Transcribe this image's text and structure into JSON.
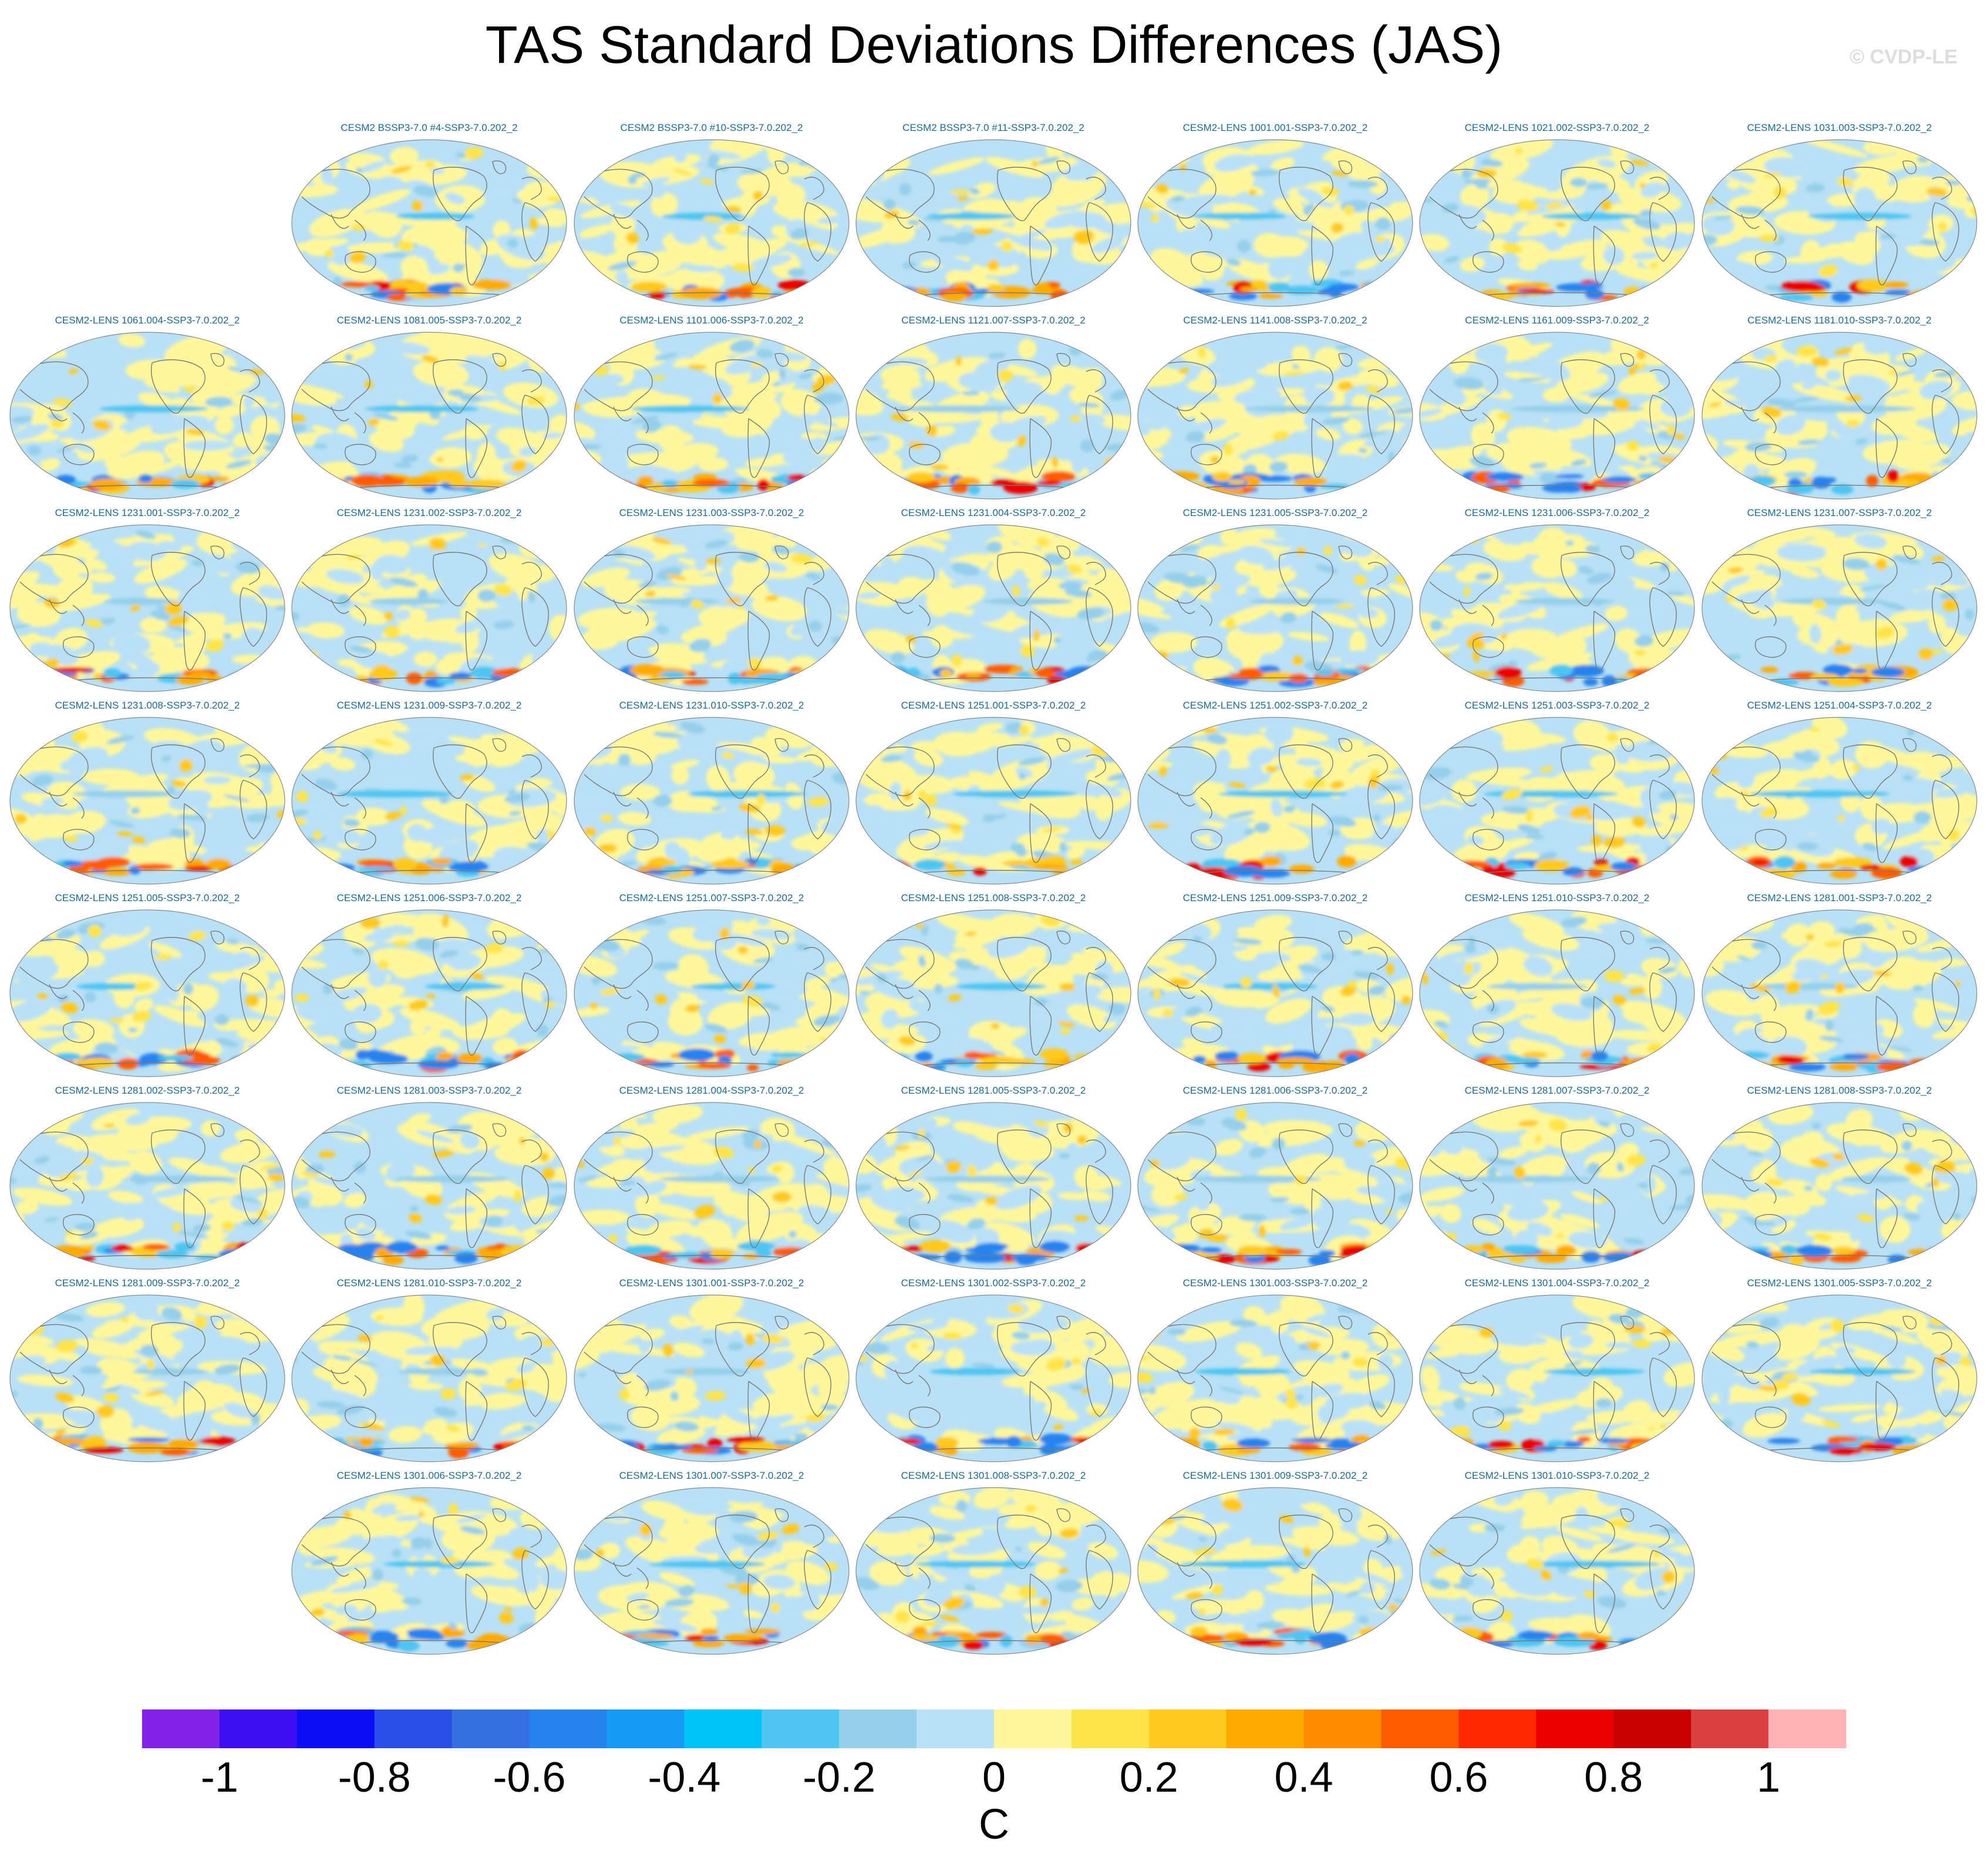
{
  "title": "TAS Standard Deviations Differences (JAS)",
  "watermark": "© CVDP-LE",
  "chart_data": {
    "type": "heatmap",
    "title": "TAS Standard Deviations Differences (JAS)",
    "description_unit": "C",
    "panels": [
      [
        "",
        "CESM2 BSSP3-7.0 #4-SSP3-7.0.202_2",
        "CESM2 BSSP3-7.0 #10-SSP3-7.0.202_2",
        "CESM2 BSSP3-7.0 #11-SSP3-7.0.202_2",
        "CESM2-LENS 1001.001-SSP3-7.0.202_2",
        "CESM2-LENS 1021.002-SSP3-7.0.202_2",
        "CESM2-LENS 1031.003-SSP3-7.0.202_2"
      ],
      [
        "CESM2-LENS 1061.004-SSP3-7.0.202_2",
        "CESM2-LENS 1081.005-SSP3-7.0.202_2",
        "CESM2-LENS 1101.006-SSP3-7.0.202_2",
        "CESM2-LENS 1121.007-SSP3-7.0.202_2",
        "CESM2-LENS 1141.008-SSP3-7.0.202_2",
        "CESM2-LENS 1161.009-SSP3-7.0.202_2",
        "CESM2-LENS 1181.010-SSP3-7.0.202_2"
      ],
      [
        "CESM2-LENS 1231.001-SSP3-7.0.202_2",
        "CESM2-LENS 1231.002-SSP3-7.0.202_2",
        "CESM2-LENS 1231.003-SSP3-7.0.202_2",
        "CESM2-LENS 1231.004-SSP3-7.0.202_2",
        "CESM2-LENS 1231.005-SSP3-7.0.202_2",
        "CESM2-LENS 1231.006-SSP3-7.0.202_2",
        "CESM2-LENS 1231.007-SSP3-7.0.202_2"
      ],
      [
        "CESM2-LENS 1231.008-SSP3-7.0.202_2",
        "CESM2-LENS 1231.009-SSP3-7.0.202_2",
        "CESM2-LENS 1231.010-SSP3-7.0.202_2",
        "CESM2-LENS 1251.001-SSP3-7.0.202_2",
        "CESM2-LENS 1251.002-SSP3-7.0.202_2",
        "CESM2-LENS 1251.003-SSP3-7.0.202_2",
        "CESM2-LENS 1251.004-SSP3-7.0.202_2"
      ],
      [
        "CESM2-LENS 1251.005-SSP3-7.0.202_2",
        "CESM2-LENS 1251.006-SSP3-7.0.202_2",
        "CESM2-LENS 1251.007-SSP3-7.0.202_2",
        "CESM2-LENS 1251.008-SSP3-7.0.202_2",
        "CESM2-LENS 1251.009-SSP3-7.0.202_2",
        "CESM2-LENS 1251.010-SSP3-7.0.202_2",
        "CESM2-LENS 1281.001-SSP3-7.0.202_2"
      ],
      [
        "CESM2-LENS 1281.002-SSP3-7.0.202_2",
        "CESM2-LENS 1281.003-SSP3-7.0.202_2",
        "CESM2-LENS 1281.004-SSP3-7.0.202_2",
        "CESM2-LENS 1281.005-SSP3-7.0.202_2",
        "CESM2-LENS 1281.006-SSP3-7.0.202_2",
        "CESM2-LENS 1281.007-SSP3-7.0.202_2",
        "CESM2-LENS 1281.008-SSP3-7.0.202_2"
      ],
      [
        "CESM2-LENS 1281.009-SSP3-7.0.202_2",
        "CESM2-LENS 1281.010-SSP3-7.0.202_2",
        "CESM2-LENS 1301.001-SSP3-7.0.202_2",
        "CESM2-LENS 1301.002-SSP3-7.0.202_2",
        "CESM2-LENS 1301.003-SSP3-7.0.202_2",
        "CESM2-LENS 1301.004-SSP3-7.0.202_2",
        "CESM2-LENS 1301.005-SSP3-7.0.202_2"
      ],
      [
        "",
        "CESM2-LENS 1301.006-SSP3-7.0.202_2",
        "CESM2-LENS 1301.007-SSP3-7.0.202_2",
        "CESM2-LENS 1301.008-SSP3-7.0.202_2",
        "CESM2-LENS 1301.009-SSP3-7.0.202_2",
        "CESM2-LENS 1301.010-SSP3-7.0.202_2",
        ""
      ]
    ],
    "colorbar": {
      "label": "C",
      "levels": [
        -1.1,
        -1.0,
        -0.9,
        -0.8,
        -0.7,
        -0.6,
        -0.5,
        -0.4,
        -0.3,
        -0.2,
        -0.1,
        0.0,
        0.1,
        0.2,
        0.3,
        0.4,
        0.5,
        0.6,
        0.7,
        0.8,
        0.9,
        1.0,
        1.1
      ],
      "colors": [
        "#8122e8",
        "#3b0ff2",
        "#0c0cf5",
        "#2a4fe6",
        "#3470e0",
        "#2582ef",
        "#159bf5",
        "#00c3f8",
        "#4ec5f2",
        "#94cfeb",
        "#b9e1f5",
        "#fff79a",
        "#ffe449",
        "#ffc91f",
        "#ffaa00",
        "#ff8c00",
        "#ff5c00",
        "#ff2800",
        "#ec0000",
        "#c80000",
        "#d94040",
        "#ffb3b3"
      ],
      "tick_values": [
        -1,
        -0.8,
        -0.6,
        -0.4,
        -0.2,
        0,
        0.2,
        0.4,
        0.6,
        0.8,
        1
      ],
      "tick_labels": [
        "-1",
        "-0.8",
        "-0.6",
        "-0.4",
        "-0.2",
        "0",
        "0.2",
        "0.4",
        "0.6",
        "0.8",
        "1"
      ]
    }
  }
}
